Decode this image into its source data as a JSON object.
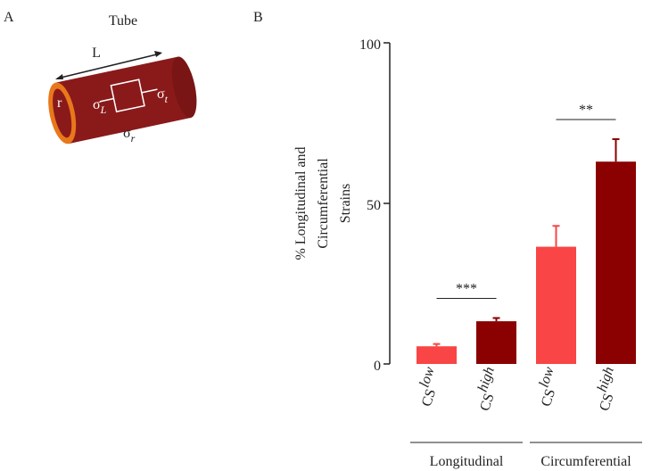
{
  "panel_labels": [
    "A",
    "B"
  ],
  "diagram": {
    "title": "Tube",
    "length_label": "L",
    "radius_label": "r",
    "stresses": [
      {
        "symbol": "σ",
        "sub": "L"
      },
      {
        "symbol": "σ",
        "sub": "t"
      },
      {
        "symbol": "σ",
        "sub": "r"
      }
    ]
  },
  "chart_data": {
    "type": "bar",
    "ylabel": [
      "% Longitudinal and",
      "Circumferential",
      "Strains"
    ],
    "categories": [
      "CS",
      "CS",
      "CS",
      "CS"
    ],
    "category_superscripts": [
      "low",
      "high",
      "low",
      "high"
    ],
    "values": [
      5.5,
      13.3,
      36.5,
      63
    ],
    "errors": [
      0.7,
      1,
      6.5,
      7
    ],
    "colors": [
      "#f94545",
      "#8b0000",
      "#f94545",
      "#8b0000"
    ],
    "groups": [
      {
        "name": "Longitudinal",
        "start": 0,
        "end": 1
      },
      {
        "name": "Circumferential",
        "start": 2,
        "end": 3
      }
    ],
    "significance": [
      {
        "label": "***",
        "from": 0,
        "to": 1
      },
      {
        "label": "**",
        "from": 2,
        "to": 3
      }
    ],
    "ylim": [
      0,
      100
    ],
    "yticks": [
      0,
      50,
      100
    ]
  }
}
